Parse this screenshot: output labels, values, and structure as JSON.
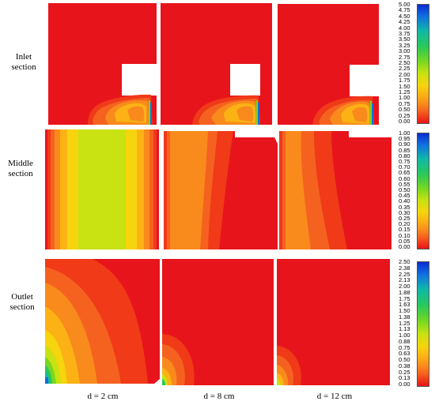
{
  "rows": [
    {
      "label_line1": "Inlet",
      "label_line2": "section"
    },
    {
      "label_line1": "Middle",
      "label_line2": "section"
    },
    {
      "label_line1": "Outlet",
      "label_line2": "section"
    }
  ],
  "columns": [
    {
      "caption": "d = 2 cm"
    },
    {
      "caption": "d = 8 cm"
    },
    {
      "caption": "d = 12 cm"
    }
  ],
  "colorbars": [
    {
      "ticks": [
        "5.00",
        "4.75",
        "4.50",
        "4.25",
        "4.00",
        "3.75",
        "3.50",
        "3.25",
        "3.00",
        "2.75",
        "2.50",
        "2.25",
        "2.00",
        "1.75",
        "1.50",
        "1.25",
        "1.00",
        "0.75",
        "0.50",
        "0.25",
        "0.00"
      ]
    },
    {
      "ticks": [
        "1.00",
        "0.95",
        "0.90",
        "0.85",
        "0.80",
        "0.75",
        "0.70",
        "0.65",
        "0.60",
        "0.55",
        "0.50",
        "0.45",
        "0.40",
        "0.35",
        "0.30",
        "0.25",
        "0.20",
        "0.15",
        "0.10",
        "0.05",
        "0.00"
      ]
    },
    {
      "ticks": [
        "2.50",
        "2.38",
        "2.25",
        "2.13",
        "2.00",
        "1.88",
        "1.75",
        "1.63",
        "1.50",
        "1.38",
        "1.25",
        "1.13",
        "1.00",
        "0.88",
        "0.75",
        "0.63",
        "0.50",
        "0.38",
        "0.25",
        "0.13",
        "0.00"
      ]
    }
  ],
  "colors": {
    "c0": "#e8141c",
    "c1": "#f03a18",
    "c2": "#f56220",
    "c3": "#f98a1c",
    "c4": "#fcb214",
    "c5": "#f6d40e",
    "c6": "#c8e212",
    "c7": "#78d820",
    "c8": "#28c85a",
    "c9": "#10b8a8",
    "c10": "#1070e0",
    "c11": "#0a2ad0"
  }
}
